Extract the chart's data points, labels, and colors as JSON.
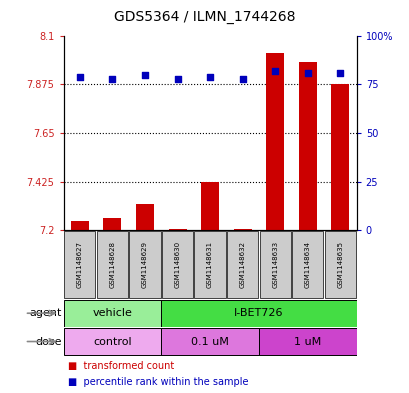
{
  "title": "GDS5364 / ILMN_1744268",
  "samples": [
    "GSM1148627",
    "GSM1148628",
    "GSM1148629",
    "GSM1148630",
    "GSM1148631",
    "GSM1148632",
    "GSM1148633",
    "GSM1148634",
    "GSM1148635"
  ],
  "bar_values": [
    7.245,
    7.255,
    7.32,
    7.205,
    7.425,
    7.205,
    8.02,
    7.98,
    7.875
  ],
  "percentile_values": [
    79,
    78,
    80,
    78,
    79,
    78,
    82,
    81,
    81
  ],
  "y_min": 7.2,
  "y_max": 8.1,
  "y_ticks": [
    7.2,
    7.425,
    7.65,
    7.875,
    8.1
  ],
  "y_tick_labels": [
    "7.2",
    "7.425",
    "7.65",
    "7.875",
    "8.1"
  ],
  "y2_ticks": [
    0,
    25,
    50,
    75,
    100
  ],
  "y2_tick_labels": [
    "0",
    "25",
    "50",
    "75",
    "100%"
  ],
  "bar_color": "#cc0000",
  "dot_color": "#0000bb",
  "agent_groups": [
    {
      "label": "vehicle",
      "start": 0,
      "end": 3,
      "color": "#99ee99"
    },
    {
      "label": "I-BET726",
      "start": 3,
      "end": 9,
      "color": "#44dd44"
    }
  ],
  "dose_groups": [
    {
      "label": "control",
      "start": 0,
      "end": 3,
      "color": "#eeaaee"
    },
    {
      "label": "0.1 uM",
      "start": 3,
      "end": 6,
      "color": "#dd77dd"
    },
    {
      "label": "1 uM",
      "start": 6,
      "end": 9,
      "color": "#cc44cc"
    }
  ],
  "label_color_red": "#cc2222",
  "label_color_blue": "#0000bb",
  "sample_box_color": "#cccccc",
  "title_fontsize": 10,
  "tick_fontsize": 7,
  "sample_fontsize": 5,
  "row_label_fontsize": 8,
  "row_text_fontsize": 8,
  "legend_fontsize": 7
}
